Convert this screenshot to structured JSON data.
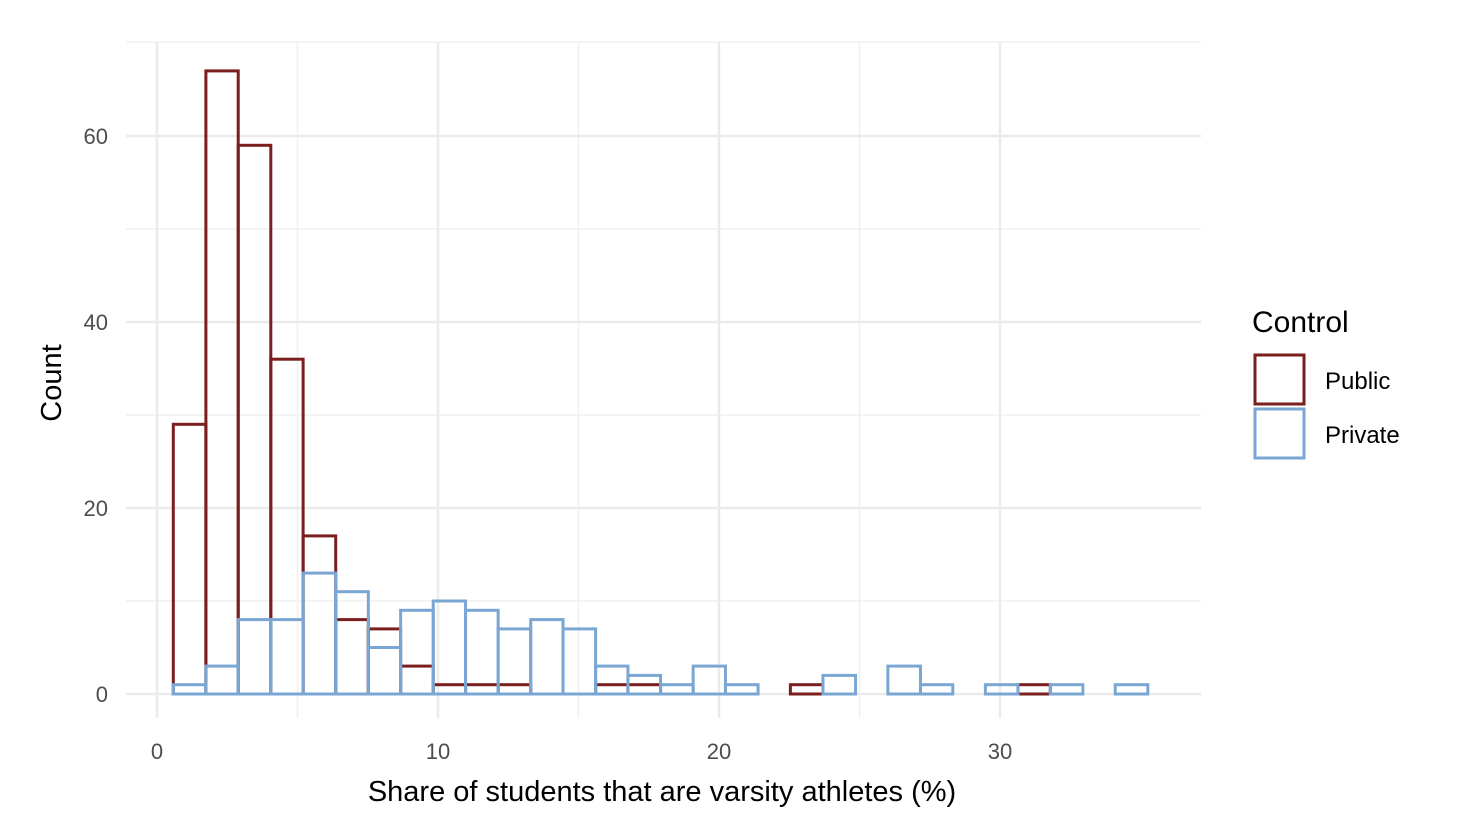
{
  "chart_data": {
    "type": "bar",
    "subtype": "overlaid-histogram",
    "title": "",
    "xlabel": "Share of students that are varsity athletes (%)",
    "ylabel": "Count",
    "xlim": [
      0,
      35
    ],
    "ylim": [
      0,
      67
    ],
    "grid": true,
    "x_ticks": [
      0,
      10,
      20,
      30
    ],
    "y_ticks": [
      0,
      20,
      40,
      60
    ],
    "x_tick_labels": [
      "0",
      "10",
      "20",
      "30"
    ],
    "y_tick_labels": [
      "0",
      "20",
      "40",
      "60"
    ],
    "bin_edges": [
      0.58,
      1.74,
      2.89,
      4.05,
      5.2,
      6.36,
      7.52,
      8.67,
      9.83,
      10.98,
      12.14,
      13.3,
      14.45,
      15.61,
      16.76,
      17.92,
      19.08,
      20.23,
      21.39,
      22.54,
      23.7,
      24.86,
      26.01,
      27.17,
      28.32,
      29.48,
      30.64,
      31.79,
      32.95,
      34.1,
      35.26
    ],
    "legend": {
      "title": "Control",
      "position": "right"
    },
    "series": [
      {
        "name": "Public",
        "color": "#7b1e1e",
        "values": [
          29,
          67,
          59,
          36,
          17,
          8,
          7,
          3,
          1,
          1,
          1,
          0,
          0,
          1,
          1,
          0,
          0,
          0,
          0,
          1,
          0,
          0,
          0,
          0,
          0,
          0,
          1,
          0,
          0,
          0
        ]
      },
      {
        "name": "Private",
        "color": "#7aa6d4",
        "values": [
          1,
          3,
          8,
          8,
          13,
          11,
          5,
          9,
          10,
          9,
          7,
          8,
          7,
          3,
          2,
          1,
          3,
          1,
          0,
          0,
          2,
          0,
          3,
          1,
          0,
          1,
          0,
          1,
          0,
          1
        ]
      }
    ]
  }
}
